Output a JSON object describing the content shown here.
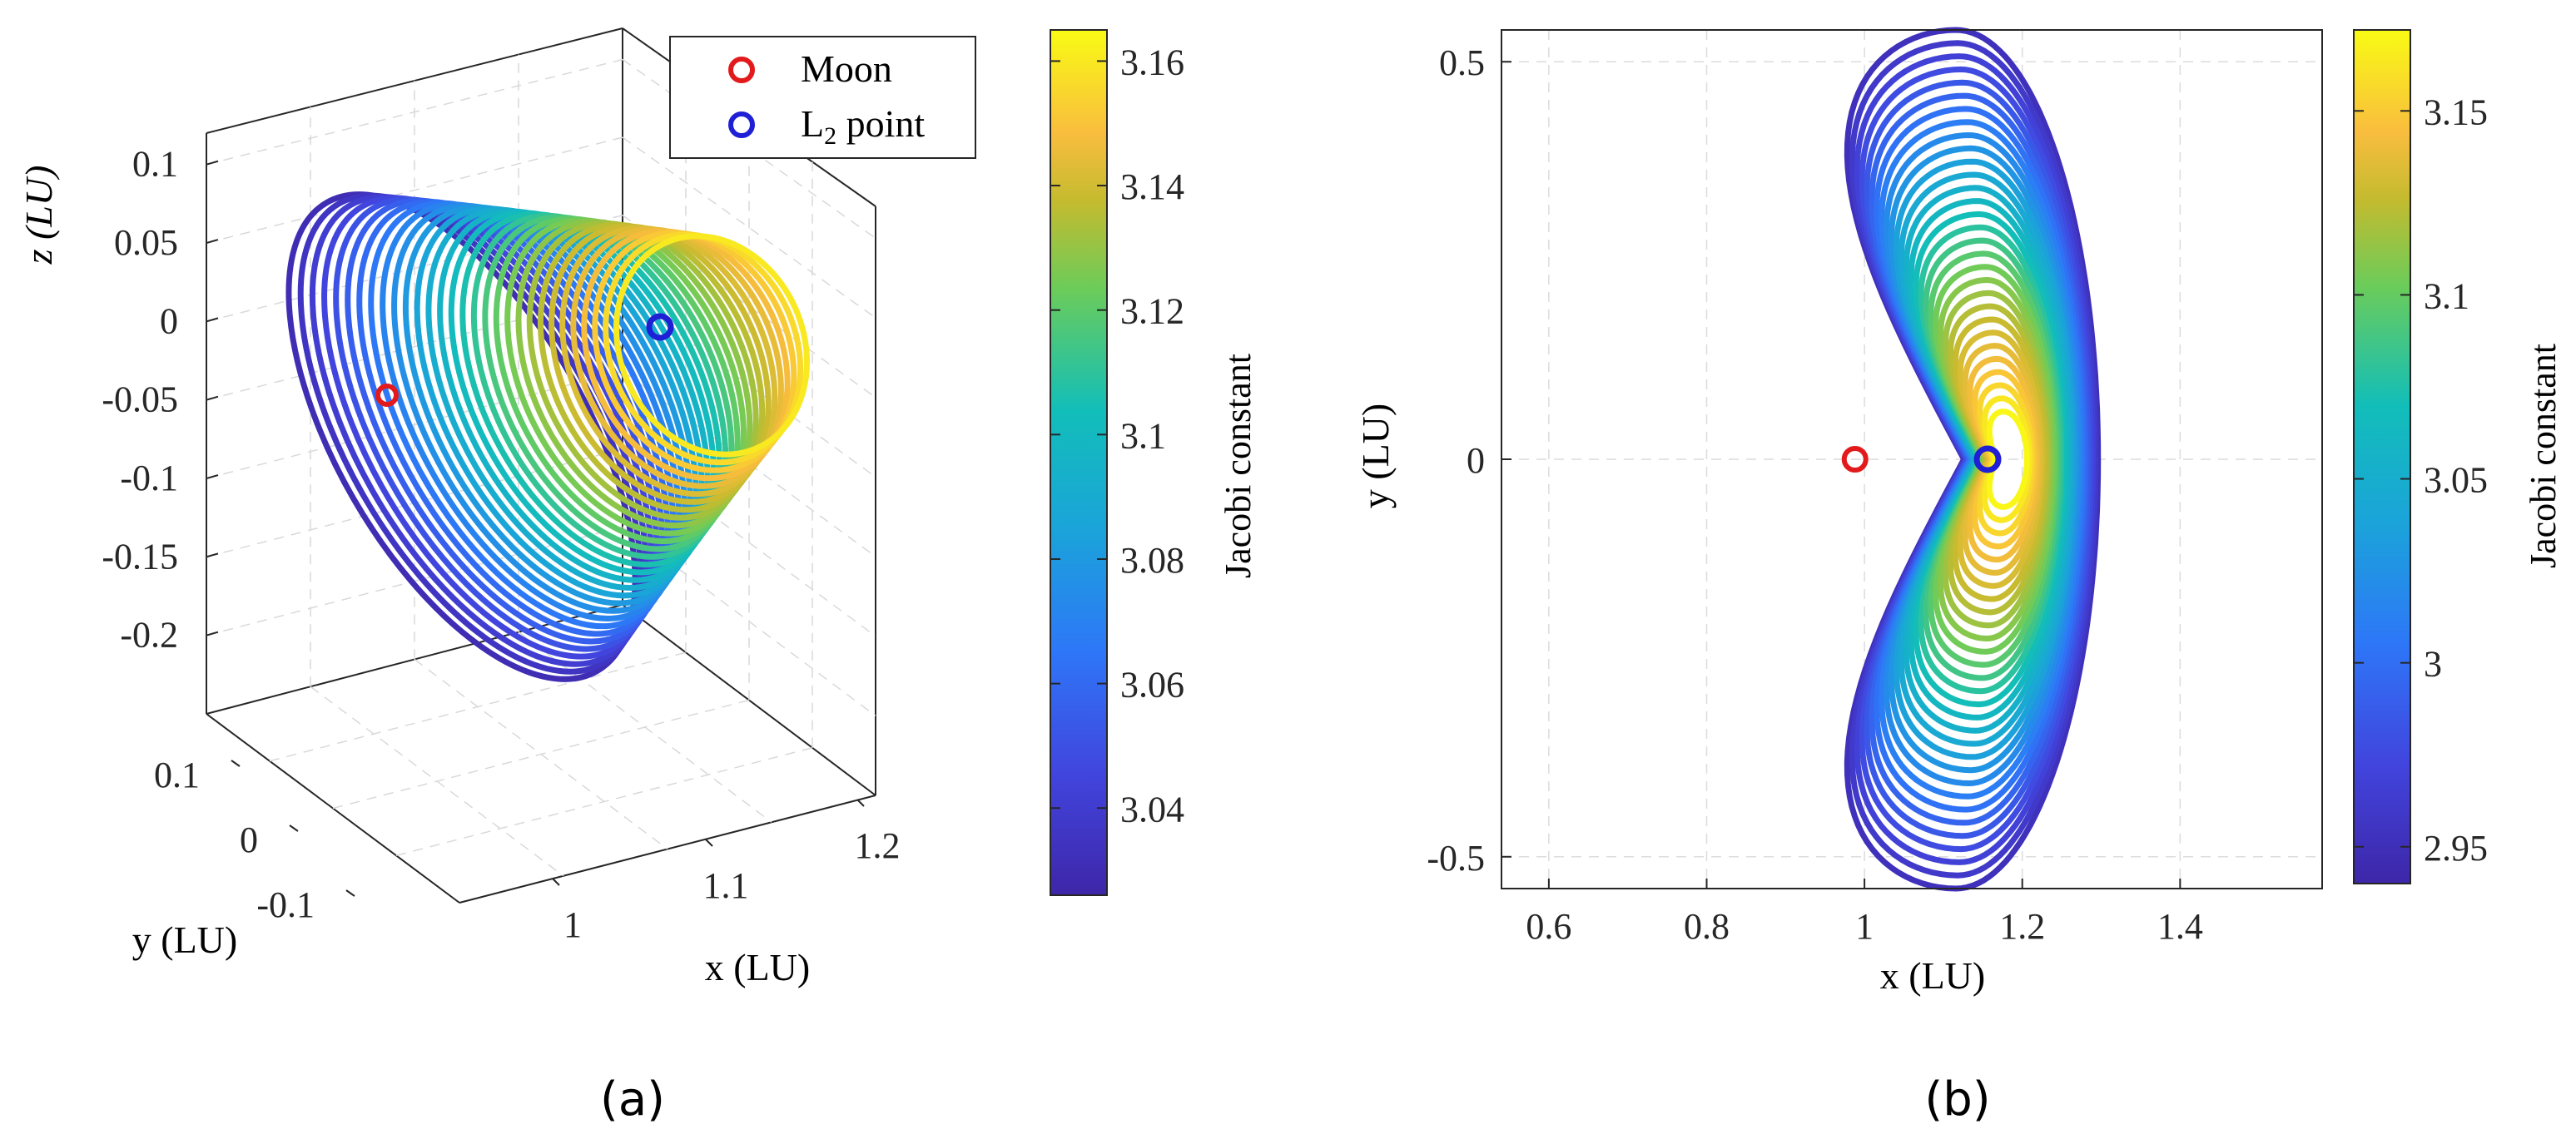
{
  "chart_data": [
    {
      "type": "line",
      "panel_label": "(a)",
      "projection": "3d",
      "title": "",
      "xlabel": "x (LU)",
      "ylabel": "y (LU)",
      "zlabel": "z (LU)",
      "x_ticks": [
        "1",
        "1.1",
        "1.2"
      ],
      "y_ticks": [
        "0.1",
        "0",
        "-0.1"
      ],
      "z_ticks": [
        "0.1",
        "0.05",
        "0",
        "-0.05",
        "-0.1",
        "-0.15",
        "-0.2"
      ],
      "xlim": [
        0.95,
        1.25
      ],
      "ylim": [
        -0.15,
        0.15
      ],
      "zlim": [
        -0.25,
        0.12
      ],
      "legend": {
        "position": "top-right",
        "entries": [
          {
            "name": "Moon",
            "marker": "o",
            "color": "#e31a1c"
          },
          {
            "name": "L2 point",
            "marker": "o",
            "color": "#1f1fd6"
          }
        ]
      },
      "colorbar": {
        "label": "Jacobi constant",
        "ticks": [
          "3.16",
          "3.14",
          "3.12",
          "3.1",
          "3.08",
          "3.06",
          "3.04"
        ],
        "range": [
          3.026,
          3.165
        ]
      },
      "series": {
        "description": "Halo orbit family (3D)",
        "num_orbits": 30,
        "jacobi_range": [
          3.03,
          3.16
        ]
      },
      "points": {
        "moon": {
          "x": 0.988,
          "y": 0,
          "z": 0
        },
        "l2": {
          "x": 1.156,
          "y": 0,
          "z": 0
        }
      },
      "grid": true
    },
    {
      "type": "line",
      "panel_label": "(b)",
      "projection": "xy",
      "title": "",
      "xlabel": "x (LU)",
      "ylabel": "y (LU)",
      "x_ticks": [
        "0.6",
        "0.8",
        "1",
        "1.2",
        "1.4"
      ],
      "y_ticks": [
        "0.5",
        "0",
        "-0.5"
      ],
      "xlim": [
        0.54,
        1.58
      ],
      "ylim": [
        -0.54,
        0.54
      ],
      "colorbar": {
        "label": "Jacobi constant",
        "ticks": [
          "3.15",
          "3.1",
          "3.05",
          "3",
          "2.95"
        ],
        "range": [
          2.94,
          3.172
        ]
      },
      "series": {
        "description": "Planar Lyapunov orbit family (x-y projection)",
        "num_orbits": 30,
        "jacobi_range": [
          2.95,
          3.17
        ]
      },
      "points": {
        "moon": {
          "x": 0.988,
          "y": 0
        },
        "l2": {
          "x": 1.156,
          "y": 0
        }
      },
      "grid": true
    }
  ]
}
